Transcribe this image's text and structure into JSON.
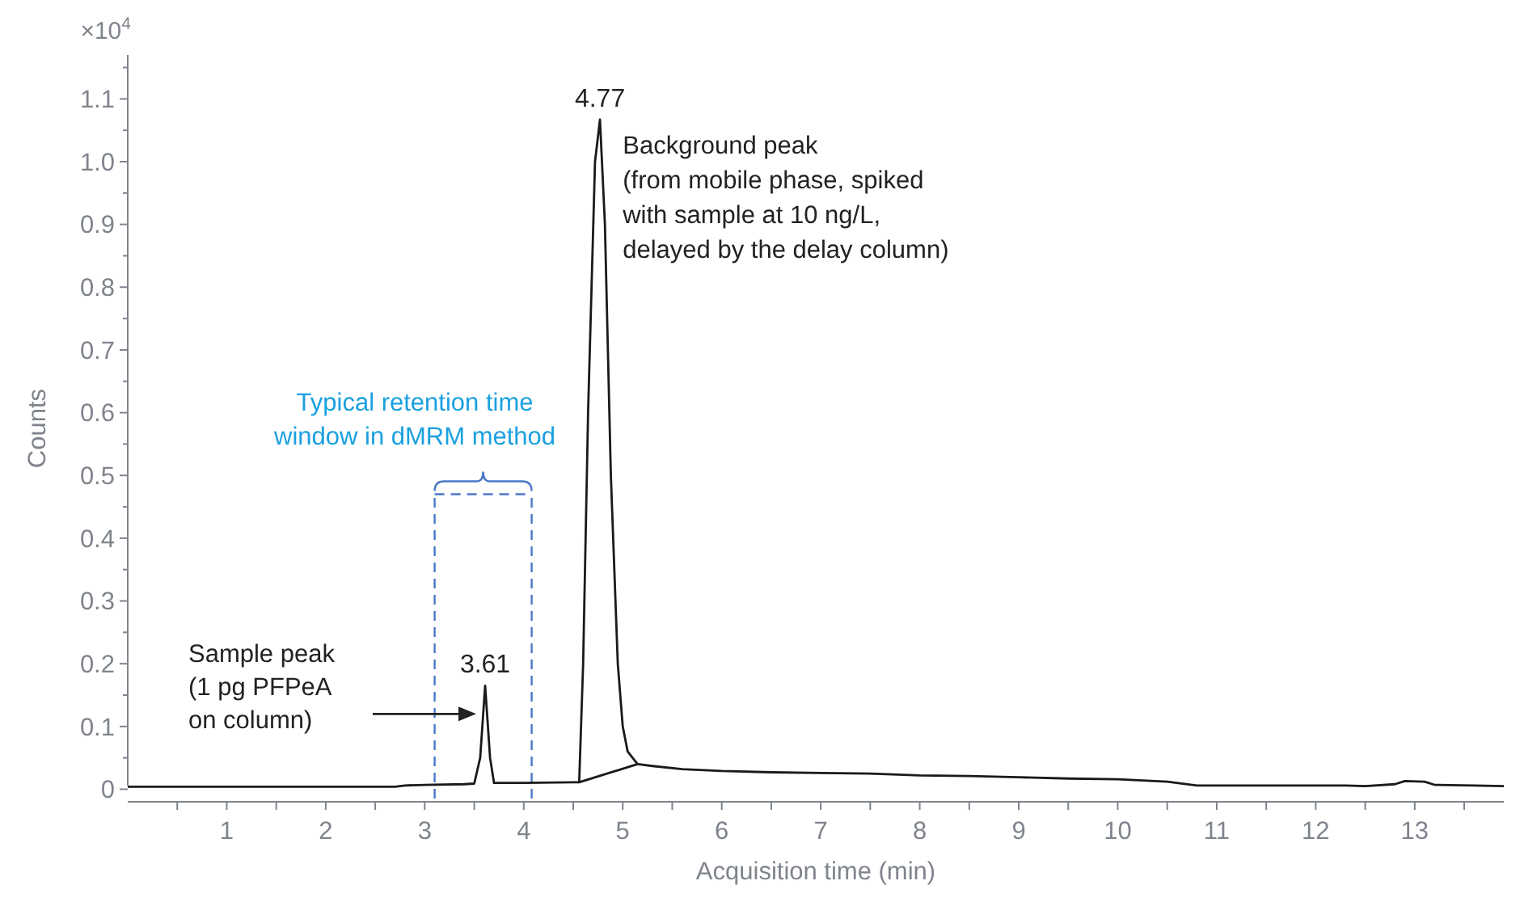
{
  "chart_data": {
    "type": "line",
    "xlabel": "Acquisition time (min)",
    "ylabel": "Counts",
    "xlim": [
      0,
      13.9
    ],
    "ylim": [
      -0.02,
      1.17
    ],
    "xticks": [
      {
        "value": 0.5,
        "label": null
      },
      1,
      {
        "value": 1.5,
        "label": null
      },
      2,
      {
        "value": 2.5,
        "label": null
      },
      3,
      {
        "value": 3.5,
        "label": null
      },
      4,
      {
        "value": 4.5,
        "label": null
      },
      5,
      {
        "value": 5.5,
        "label": null
      },
      6,
      {
        "value": 6.5,
        "label": null
      },
      7,
      {
        "value": 7.5,
        "label": null
      },
      8,
      {
        "value": 8.5,
        "label": null
      },
      9,
      {
        "value": 9.5,
        "label": null
      },
      10,
      {
        "value": 10.5,
        "label": null
      },
      11,
      {
        "value": 11.5,
        "label": null
      },
      12,
      {
        "value": 12.5,
        "label": null
      },
      13,
      {
        "value": 13.5,
        "label": null
      }
    ],
    "yticks": [
      0,
      {
        "value": 0.05,
        "label": null
      },
      0.1,
      {
        "value": 0.15,
        "label": null
      },
      0.2,
      {
        "value": 0.25,
        "label": null
      },
      0.3,
      {
        "value": 0.35,
        "label": null
      },
      0.4,
      {
        "value": 0.45,
        "label": null
      },
      0.5,
      {
        "value": 0.55,
        "label": null
      },
      0.6,
      {
        "value": 0.65,
        "label": null
      },
      0.7,
      {
        "value": 0.75,
        "label": null
      },
      0.8,
      {
        "value": 0.85,
        "label": null
      },
      0.9,
      {
        "value": 0.95,
        "label": null
      },
      {
        "value": 1,
        "label": "1.0"
      },
      {
        "value": 1.05,
        "label": null
      },
      1.1,
      {
        "value": 1.15,
        "label": null
      }
    ],
    "grid": false,
    "marker": "none",
    "line_style": "solid",
    "series": [
      {
        "color": "#1a1a1a",
        "x": [
          0,
          2.7,
          2.8,
          3.0,
          3.4,
          3.5,
          3.56,
          3.61,
          3.66,
          3.7,
          4.0,
          4.5,
          4.56,
          4.6,
          4.65,
          4.72,
          4.77,
          4.82,
          4.88,
          4.95,
          5.0,
          5.05,
          5.15,
          5.3,
          5.6,
          6.0,
          6.5,
          7.0,
          7.5,
          8.0,
          8.5,
          9.0,
          9.5,
          10.0,
          10.5,
          10.8,
          11.5,
          12.3,
          12.5,
          12.8,
          12.9,
          13.1,
          13.2,
          13.6,
          13.9
        ],
        "values": [
          0.004,
          0.004,
          0.006,
          0.007,
          0.008,
          0.009,
          0.05,
          0.165,
          0.05,
          0.01,
          0.01,
          0.011,
          0.011,
          0.2,
          0.6,
          1.0,
          1.067,
          0.9,
          0.5,
          0.2,
          0.1,
          0.06,
          0.04,
          0.037,
          0.032,
          0.029,
          0.027,
          0.026,
          0.025,
          0.022,
          0.021,
          0.019,
          0.017,
          0.016,
          0.012,
          0.006,
          0.006,
          0.006,
          0.005,
          0.008,
          0.013,
          0.012,
          0.007,
          0.006,
          0.005
        ]
      },
      {
        "color": "#1a1a1a",
        "x": [
          4.56,
          5.15
        ],
        "values": [
          0.011,
          0.04
        ]
      }
    ],
    "ref_lines": [
      {
        "axis": "x",
        "value": 3.1,
        "color": "#4a78c8",
        "line_style": "dashed"
      },
      {
        "axis": "x",
        "value": 4.08,
        "color": "#4a78c8",
        "line_style": "dashed"
      }
    ],
    "annotations": [
      "×10$^{4}$",
      {
        "text": "3.61",
        "x": 3.61,
        "y": 0.165
      },
      {
        "text": "4.77",
        "x": 4.77,
        "y": 1.067
      },
      "Sample peak\n(1 pg PFPeA\non column)",
      "Typical retention time\nwindow in dMRM method",
      "Background peak\n(from mobile phase, spiked\nwith sample at 10 ng/L,\ndelayed by the delay column)"
    ]
  }
}
